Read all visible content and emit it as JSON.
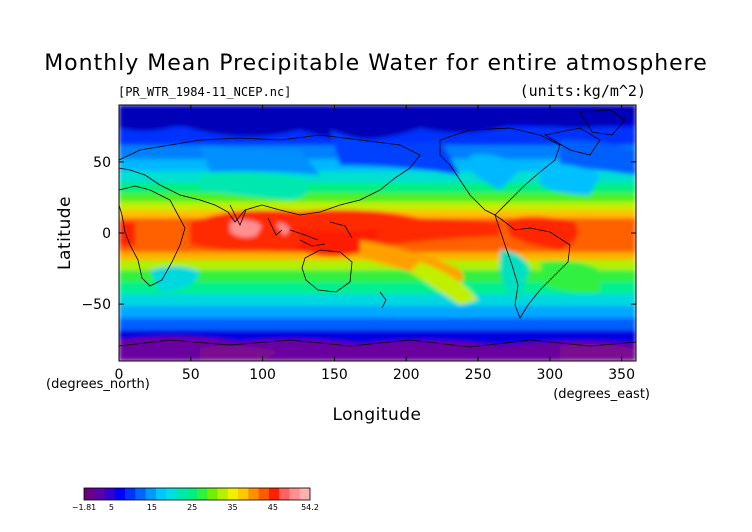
{
  "title": "Monthly Mean Precipitable Water for entire atmosphere",
  "file_label": "[PR_WTR_1984-11_NCEP.nc]",
  "units_label": "(units:kg/m^2)",
  "chart_data": {
    "type": "heatmap",
    "xlabel": "Longitude",
    "ylabel": "Latitude",
    "x_unit_label": "(degrees_east)",
    "y_unit_label": "(degrees_north)",
    "xlim": [
      0,
      360
    ],
    "ylim": [
      -90,
      90
    ],
    "x_ticks": [
      0,
      50,
      100,
      150,
      200,
      250,
      300,
      350
    ],
    "y_ticks": [
      -50,
      0,
      50
    ],
    "x_tick_labels": [
      "0",
      "50",
      "100",
      "150",
      "200",
      "250",
      "300",
      "350"
    ],
    "y_tick_labels": [
      "−50",
      "0",
      "50"
    ],
    "colorbar": {
      "min": -1.81,
      "max": 54.2,
      "tick_values": [
        -1.81,
        5,
        15,
        25,
        35,
        45,
        54.2
      ],
      "tick_labels": [
        "−1.81",
        "5",
        "15",
        "25",
        "35",
        "45",
        "54.2"
      ],
      "colors": [
        "#6a0080",
        "#5a00a8",
        "#3300d0",
        "#0000ff",
        "#0033ff",
        "#0066ff",
        "#0099ff",
        "#00c8ff",
        "#00e0e0",
        "#00e8b0",
        "#00f080",
        "#30f040",
        "#70f000",
        "#b8f000",
        "#f0f000",
        "#ffc800",
        "#ff9000",
        "#ff5a00",
        "#ff2000",
        "#ff6060",
        "#ff9090",
        "#ffb0b0"
      ]
    },
    "field_description": "Monthly mean precipitable water, Nov 1984; max values near the equator (~45-54), decreasing poleward to near 0 in polar regions"
  }
}
